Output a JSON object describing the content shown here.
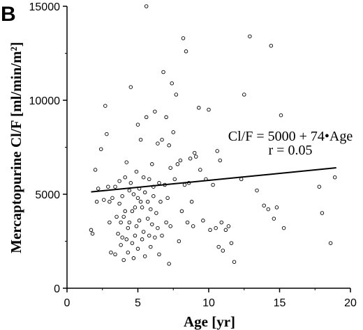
{
  "panel_label": "B",
  "chart_data": {
    "type": "scatter",
    "xlabel": "Age [yr]",
    "ylabel": "Mercaptopurine Cl/F [ml/min/m²]",
    "xlim": [
      0,
      20
    ],
    "ylim": [
      0,
      15000
    ],
    "x_ticks": [
      0,
      5,
      10,
      15,
      20
    ],
    "y_ticks": [
      0,
      5000,
      10000,
      15000
    ],
    "grid": false,
    "annotations": [
      "Cl/F = 5000 + 74•Age",
      "r = 0.05"
    ],
    "regression": {
      "intercept": 5000,
      "slope": 74,
      "x_range": [
        1.7,
        19
      ]
    },
    "points": [
      [
        1.7,
        3100
      ],
      [
        1.8,
        2900
      ],
      [
        2.0,
        6300
      ],
      [
        2.1,
        4600
      ],
      [
        2.2,
        5300
      ],
      [
        2.4,
        7400
      ],
      [
        2.6,
        4700
      ],
      [
        2.7,
        9700
      ],
      [
        2.8,
        8200
      ],
      [
        2.9,
        5400
      ],
      [
        3.0,
        3500
      ],
      [
        3.0,
        4600
      ],
      [
        3.1,
        1900
      ],
      [
        3.2,
        4800
      ],
      [
        3.4,
        1800
      ],
      [
        3.4,
        5400
      ],
      [
        3.5,
        3800
      ],
      [
        3.6,
        2900
      ],
      [
        3.7,
        4500
      ],
      [
        3.7,
        5700
      ],
      [
        3.8,
        3500
      ],
      [
        3.8,
        2300
      ],
      [
        3.9,
        4900
      ],
      [
        3.9,
        2700
      ],
      [
        4.0,
        1500
      ],
      [
        4.0,
        3800
      ],
      [
        4.1,
        5900
      ],
      [
        4.1,
        4100
      ],
      [
        4.2,
        2600
      ],
      [
        4.2,
        6700
      ],
      [
        4.3,
        1900
      ],
      [
        4.3,
        3200
      ],
      [
        4.4,
        5200
      ],
      [
        4.4,
        3500
      ],
      [
        4.5,
        5600
      ],
      [
        4.5,
        10700
      ],
      [
        4.6,
        4100
      ],
      [
        4.6,
        2400
      ],
      [
        4.7,
        1600
      ],
      [
        4.7,
        5000
      ],
      [
        4.8,
        2800
      ],
      [
        4.8,
        4300
      ],
      [
        4.9,
        6200
      ],
      [
        4.9,
        3300
      ],
      [
        5.0,
        8700
      ],
      [
        5.0,
        4800
      ],
      [
        5.0,
        2100
      ],
      [
        5.1,
        5300
      ],
      [
        5.1,
        3600
      ],
      [
        5.2,
        7900
      ],
      [
        5.2,
        4600
      ],
      [
        5.3,
        2600
      ],
      [
        5.3,
        4300
      ],
      [
        5.4,
        5900
      ],
      [
        5.4,
        3000
      ],
      [
        5.5,
        5100
      ],
      [
        5.5,
        1700
      ],
      [
        5.6,
        15000
      ],
      [
        5.6,
        9100
      ],
      [
        5.7,
        4600
      ],
      [
        5.7,
        3700
      ],
      [
        5.8,
        2800
      ],
      [
        5.8,
        5800
      ],
      [
        5.9,
        4200
      ],
      [
        5.9,
        2200
      ],
      [
        6.0,
        6600
      ],
      [
        6.0,
        3400
      ],
      [
        6.1,
        5400
      ],
      [
        6.1,
        4900
      ],
      [
        6.2,
        9400
      ],
      [
        6.2,
        2700
      ],
      [
        6.3,
        4000
      ],
      [
        6.4,
        7700
      ],
      [
        6.4,
        3200
      ],
      [
        6.5,
        5600
      ],
      [
        6.5,
        1800
      ],
      [
        6.6,
        4600
      ],
      [
        6.7,
        7900
      ],
      [
        6.7,
        2800
      ],
      [
        6.8,
        11500
      ],
      [
        6.9,
        5500
      ],
      [
        7.0,
        9100
      ],
      [
        7.0,
        3500
      ],
      [
        7.1,
        4800
      ],
      [
        7.2,
        7600
      ],
      [
        7.2,
        1300
      ],
      [
        7.3,
        6400
      ],
      [
        7.3,
        3300
      ],
      [
        7.4,
        10900
      ],
      [
        7.5,
        8300
      ],
      [
        7.6,
        5800
      ],
      [
        7.7,
        10300
      ],
      [
        7.8,
        6600
      ],
      [
        7.9,
        2500
      ],
      [
        8.0,
        6800
      ],
      [
        8.1,
        4100
      ],
      [
        8.2,
        13300
      ],
      [
        8.3,
        5500
      ],
      [
        8.4,
        12600
      ],
      [
        8.5,
        3500
      ],
      [
        8.6,
        5600
      ],
      [
        8.7,
        6900
      ],
      [
        8.8,
        4600
      ],
      [
        8.9,
        3300
      ],
      [
        9.0,
        7200
      ],
      [
        9.1,
        7000
      ],
      [
        9.3,
        9600
      ],
      [
        9.4,
        6300
      ],
      [
        9.6,
        3600
      ],
      [
        9.8,
        5800
      ],
      [
        10.0,
        9500
      ],
      [
        10.1,
        3100
      ],
      [
        10.3,
        5500
      ],
      [
        10.5,
        3200
      ],
      [
        10.6,
        7300
      ],
      [
        10.7,
        2200
      ],
      [
        10.8,
        6800
      ],
      [
        10.9,
        3500
      ],
      [
        11.0,
        2000
      ],
      [
        11.2,
        3100
      ],
      [
        11.4,
        3300
      ],
      [
        11.6,
        2400
      ],
      [
        11.8,
        1400
      ],
      [
        12.3,
        5800
      ],
      [
        12.5,
        10300
      ],
      [
        12.9,
        13400
      ],
      [
        13.4,
        5200
      ],
      [
        13.9,
        4400
      ],
      [
        14.2,
        4200
      ],
      [
        14.4,
        12900
      ],
      [
        14.6,
        3700
      ],
      [
        14.8,
        4300
      ],
      [
        15.1,
        9200
      ],
      [
        15.3,
        3200
      ],
      [
        17.8,
        5400
      ],
      [
        18.0,
        4000
      ],
      [
        18.6,
        2400
      ],
      [
        18.9,
        5900
      ]
    ]
  }
}
